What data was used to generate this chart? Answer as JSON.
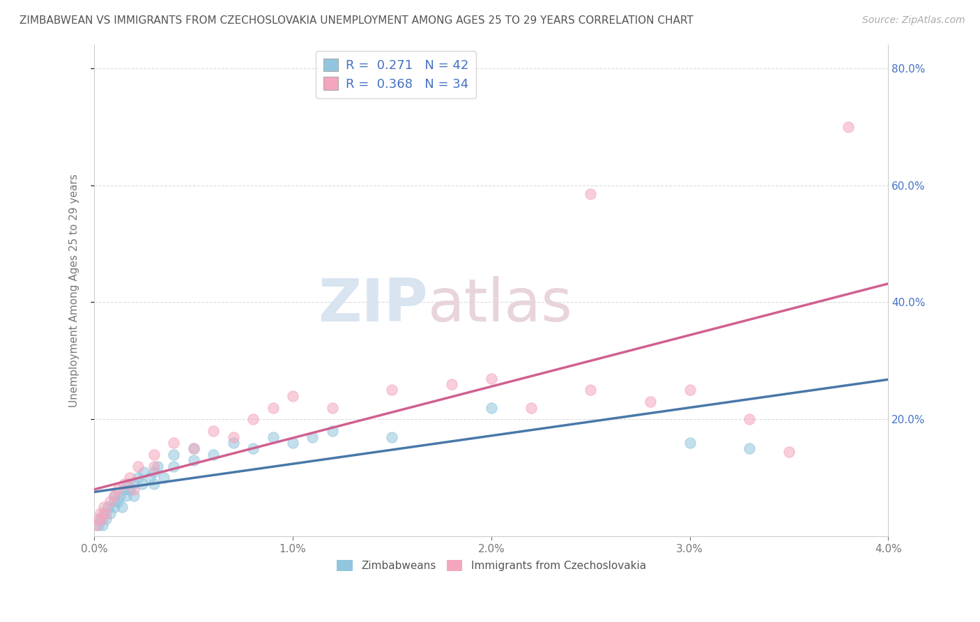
{
  "title": "ZIMBABWEAN VS IMMIGRANTS FROM CZECHOSLOVAKIA UNEMPLOYMENT AMONG AGES 25 TO 29 YEARS CORRELATION CHART",
  "source": "Source: ZipAtlas.com",
  "ylabel": "Unemployment Among Ages 25 to 29 years",
  "xlim": [
    0.0,
    0.04
  ],
  "ylim": [
    0.0,
    0.84
  ],
  "xtick_labels": [
    "0.0%",
    "1.0%",
    "2.0%",
    "3.0%",
    "4.0%"
  ],
  "xtick_values": [
    0.0,
    0.01,
    0.02,
    0.03,
    0.04
  ],
  "ytick_labels": [
    "20.0%",
    "40.0%",
    "60.0%",
    "80.0%"
  ],
  "ytick_values": [
    0.2,
    0.4,
    0.6,
    0.8
  ],
  "background_color": "#ffffff",
  "grid_color": "#cccccc",
  "watermark_zip": "ZIP",
  "watermark_atlas": "atlas",
  "legend1_R": "0.271",
  "legend1_N": "42",
  "legend2_R": "0.368",
  "legend2_N": "34",
  "legend_label1": "Zimbabweans",
  "legend_label2": "Immigrants from Czechoslovakia",
  "blue_color": "#92c5de",
  "pink_color": "#f4a6bd",
  "blue_line_color": "#4878a8",
  "pink_line_color": "#d06090",
  "zim_x": [
    0.0002,
    0.0003,
    0.0004,
    0.0005,
    0.0006,
    0.0007,
    0.0008,
    0.001,
    0.001,
    0.001,
    0.0012,
    0.0013,
    0.0014,
    0.0015,
    0.0016,
    0.0017,
    0.0018,
    0.002,
    0.002,
    0.0022,
    0.0024,
    0.0025,
    0.0028,
    0.003,
    0.003,
    0.0032,
    0.0035,
    0.004,
    0.004,
    0.005,
    0.005,
    0.006,
    0.007,
    0.008,
    0.009,
    0.01,
    0.011,
    0.012,
    0.015,
    0.02,
    0.03,
    0.033
  ],
  "zim_y": [
    0.02,
    0.03,
    0.02,
    0.04,
    0.03,
    0.05,
    0.04,
    0.05,
    0.06,
    0.07,
    0.06,
    0.07,
    0.05,
    0.08,
    0.07,
    0.09,
    0.08,
    0.07,
    0.09,
    0.1,
    0.09,
    0.11,
    0.1,
    0.09,
    0.11,
    0.12,
    0.1,
    0.12,
    0.14,
    0.13,
    0.15,
    0.14,
    0.16,
    0.15,
    0.17,
    0.16,
    0.17,
    0.18,
    0.17,
    0.22,
    0.16,
    0.15
  ],
  "czk_x": [
    0.0001,
    0.0002,
    0.0003,
    0.0004,
    0.0005,
    0.0006,
    0.0008,
    0.001,
    0.0012,
    0.0015,
    0.0018,
    0.002,
    0.0022,
    0.003,
    0.003,
    0.004,
    0.005,
    0.006,
    0.007,
    0.008,
    0.009,
    0.01,
    0.012,
    0.015,
    0.018,
    0.02,
    0.022,
    0.025,
    0.025,
    0.028,
    0.03,
    0.033,
    0.035,
    0.038
  ],
  "czk_y": [
    0.02,
    0.03,
    0.04,
    0.03,
    0.05,
    0.04,
    0.06,
    0.07,
    0.08,
    0.09,
    0.1,
    0.08,
    0.12,
    0.14,
    0.12,
    0.16,
    0.15,
    0.18,
    0.17,
    0.2,
    0.22,
    0.24,
    0.22,
    0.25,
    0.26,
    0.27,
    0.22,
    0.25,
    0.585,
    0.23,
    0.25,
    0.2,
    0.145,
    0.7
  ],
  "title_fontsize": 11,
  "source_fontsize": 10,
  "axis_label_fontsize": 11,
  "tick_fontsize": 11,
  "legend_fontsize": 11
}
